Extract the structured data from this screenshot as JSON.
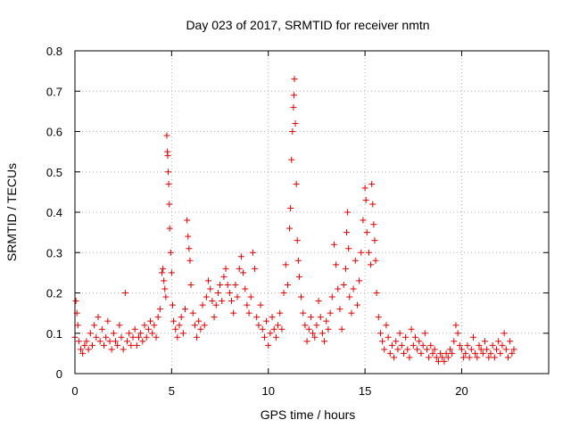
{
  "chart_data": {
    "type": "scatter",
    "title": "Day 023 of 2017, SRMTID for receiver nmtn",
    "xlabel": "GPS time / hours",
    "ylabel": "SRMTID / TECUs",
    "xlim": [
      0,
      24.5
    ],
    "ylim": [
      0,
      0.8
    ],
    "xticks": [
      0,
      5,
      10,
      15,
      20
    ],
    "xtick_labels": [
      "0",
      "5",
      "10",
      "15",
      "20"
    ],
    "yticks": [
      0,
      0.1,
      0.2,
      0.3,
      0.4,
      0.5,
      0.6,
      0.7,
      0.8
    ],
    "ytick_labels": [
      "0",
      "0.1",
      "0.2",
      "0.3",
      "0.4",
      "0.5",
      "0.6",
      "0.7",
      "0.8"
    ],
    "grid": true,
    "marker": "+",
    "color": "#e00000",
    "series": [
      {
        "name": "SRMTID",
        "points": [
          [
            0.0,
            0.09
          ],
          [
            0.05,
            0.18
          ],
          [
            0.1,
            0.15
          ],
          [
            0.15,
            0.12
          ],
          [
            0.2,
            0.08
          ],
          [
            0.3,
            0.06
          ],
          [
            0.4,
            0.05
          ],
          [
            0.5,
            0.07
          ],
          [
            0.6,
            0.08
          ],
          [
            0.7,
            0.06
          ],
          [
            0.8,
            0.1
          ],
          [
            0.9,
            0.07
          ],
          [
            1.0,
            0.12
          ],
          [
            1.1,
            0.09
          ],
          [
            1.2,
            0.14
          ],
          [
            1.3,
            0.08
          ],
          [
            1.4,
            0.11
          ],
          [
            1.5,
            0.07
          ],
          [
            1.6,
            0.09
          ],
          [
            1.7,
            0.13
          ],
          [
            1.8,
            0.08
          ],
          [
            1.9,
            0.06
          ],
          [
            2.0,
            0.1
          ],
          [
            2.1,
            0.08
          ],
          [
            2.2,
            0.07
          ],
          [
            2.3,
            0.12
          ],
          [
            2.4,
            0.09
          ],
          [
            2.5,
            0.06
          ],
          [
            2.6,
            0.2
          ],
          [
            2.7,
            0.08
          ],
          [
            2.8,
            0.1
          ],
          [
            2.9,
            0.07
          ],
          [
            3.0,
            0.09
          ],
          [
            3.1,
            0.11
          ],
          [
            3.2,
            0.07
          ],
          [
            3.3,
            0.09
          ],
          [
            3.4,
            0.1
          ],
          [
            3.5,
            0.08
          ],
          [
            3.6,
            0.12
          ],
          [
            3.7,
            0.09
          ],
          [
            3.8,
            0.11
          ],
          [
            3.9,
            0.13
          ],
          [
            4.0,
            0.1
          ],
          [
            4.1,
            0.12
          ],
          [
            4.2,
            0.09
          ],
          [
            4.3,
            0.14
          ],
          [
            4.4,
            0.16
          ],
          [
            4.5,
            0.25
          ],
          [
            4.55,
            0.26
          ],
          [
            4.6,
            0.23
          ],
          [
            4.65,
            0.21
          ],
          [
            4.7,
            0.19
          ],
          [
            4.75,
            0.59
          ],
          [
            4.78,
            0.55
          ],
          [
            4.8,
            0.54
          ],
          [
            4.82,
            0.5
          ],
          [
            4.85,
            0.47
          ],
          [
            4.88,
            0.42
          ],
          [
            4.9,
            0.36
          ],
          [
            4.95,
            0.3
          ],
          [
            5.0,
            0.25
          ],
          [
            5.05,
            0.17
          ],
          [
            5.1,
            0.13
          ],
          [
            5.2,
            0.11
          ],
          [
            5.3,
            0.09
          ],
          [
            5.4,
            0.12
          ],
          [
            5.5,
            0.14
          ],
          [
            5.6,
            0.1
          ],
          [
            5.7,
            0.16
          ],
          [
            5.8,
            0.38
          ],
          [
            5.85,
            0.34
          ],
          [
            5.9,
            0.31
          ],
          [
            5.95,
            0.28
          ],
          [
            6.0,
            0.22
          ],
          [
            6.1,
            0.15
          ],
          [
            6.2,
            0.12
          ],
          [
            6.3,
            0.09
          ],
          [
            6.4,
            0.13
          ],
          [
            6.5,
            0.11
          ],
          [
            6.6,
            0.17
          ],
          [
            6.7,
            0.12
          ],
          [
            6.8,
            0.19
          ],
          [
            6.9,
            0.23
          ],
          [
            7.0,
            0.21
          ],
          [
            7.1,
            0.18
          ],
          [
            7.2,
            0.14
          ],
          [
            7.3,
            0.17
          ],
          [
            7.4,
            0.2
          ],
          [
            7.5,
            0.22
          ],
          [
            7.6,
            0.18
          ],
          [
            7.7,
            0.24
          ],
          [
            7.8,
            0.26
          ],
          [
            7.9,
            0.22
          ],
          [
            8.0,
            0.2
          ],
          [
            8.1,
            0.18
          ],
          [
            8.2,
            0.15
          ],
          [
            8.3,
            0.22
          ],
          [
            8.4,
            0.19
          ],
          [
            8.5,
            0.26
          ],
          [
            8.6,
            0.29
          ],
          [
            8.7,
            0.25
          ],
          [
            8.8,
            0.21
          ],
          [
            8.9,
            0.17
          ],
          [
            9.0,
            0.15
          ],
          [
            9.1,
            0.19
          ],
          [
            9.2,
            0.3
          ],
          [
            9.3,
            0.26
          ],
          [
            9.4,
            0.14
          ],
          [
            9.5,
            0.12
          ],
          [
            9.6,
            0.17
          ],
          [
            9.7,
            0.11
          ],
          [
            9.8,
            0.09
          ],
          [
            9.9,
            0.13
          ],
          [
            10.0,
            0.07
          ],
          [
            10.1,
            0.1
          ],
          [
            10.2,
            0.14
          ],
          [
            10.3,
            0.11
          ],
          [
            10.4,
            0.09
          ],
          [
            10.5,
            0.12
          ],
          [
            10.6,
            0.15
          ],
          [
            10.7,
            0.11
          ],
          [
            10.8,
            0.2
          ],
          [
            10.9,
            0.27
          ],
          [
            11.0,
            0.22
          ],
          [
            11.1,
            0.36
          ],
          [
            11.15,
            0.41
          ],
          [
            11.2,
            0.53
          ],
          [
            11.25,
            0.6
          ],
          [
            11.3,
            0.66
          ],
          [
            11.33,
            0.69
          ],
          [
            11.35,
            0.73
          ],
          [
            11.4,
            0.62
          ],
          [
            11.45,
            0.47
          ],
          [
            11.5,
            0.33
          ],
          [
            11.55,
            0.28
          ],
          [
            11.6,
            0.24
          ],
          [
            11.7,
            0.19
          ],
          [
            11.8,
            0.15
          ],
          [
            11.9,
            0.12
          ],
          [
            12.0,
            0.08
          ],
          [
            12.1,
            0.11
          ],
          [
            12.2,
            0.14
          ],
          [
            12.3,
            0.1
          ],
          [
            12.4,
            0.09
          ],
          [
            12.5,
            0.12
          ],
          [
            12.6,
            0.18
          ],
          [
            12.7,
            0.14
          ],
          [
            12.8,
            0.1
          ],
          [
            12.9,
            0.08
          ],
          [
            13.0,
            0.13
          ],
          [
            13.1,
            0.11
          ],
          [
            13.2,
            0.15
          ],
          [
            13.3,
            0.19
          ],
          [
            13.4,
            0.32
          ],
          [
            13.5,
            0.27
          ],
          [
            13.6,
            0.21
          ],
          [
            13.7,
            0.16
          ],
          [
            13.8,
            0.11
          ],
          [
            13.9,
            0.22
          ],
          [
            14.0,
            0.26
          ],
          [
            14.05,
            0.35
          ],
          [
            14.1,
            0.4
          ],
          [
            14.15,
            0.31
          ],
          [
            14.2,
            0.19
          ],
          [
            14.3,
            0.15
          ],
          [
            14.4,
            0.21
          ],
          [
            14.5,
            0.28
          ],
          [
            14.6,
            0.17
          ],
          [
            14.7,
            0.23
          ],
          [
            14.8,
            0.3
          ],
          [
            14.9,
            0.38
          ],
          [
            15.0,
            0.46
          ],
          [
            15.05,
            0.43
          ],
          [
            15.1,
            0.35
          ],
          [
            15.2,
            0.3
          ],
          [
            15.3,
            0.27
          ],
          [
            15.35,
            0.47
          ],
          [
            15.4,
            0.42
          ],
          [
            15.45,
            0.37
          ],
          [
            15.5,
            0.33
          ],
          [
            15.55,
            0.28
          ],
          [
            15.6,
            0.2
          ],
          [
            15.7,
            0.14
          ],
          [
            15.8,
            0.1
          ],
          [
            15.9,
            0.08
          ],
          [
            16.0,
            0.06
          ],
          [
            16.1,
            0.12
          ],
          [
            16.2,
            0.09
          ],
          [
            16.3,
            0.05
          ],
          [
            16.4,
            0.07
          ],
          [
            16.5,
            0.04
          ],
          [
            16.6,
            0.08
          ],
          [
            16.7,
            0.06
          ],
          [
            16.8,
            0.1
          ],
          [
            16.9,
            0.07
          ],
          [
            17.0,
            0.05
          ],
          [
            17.1,
            0.09
          ],
          [
            17.2,
            0.06
          ],
          [
            17.3,
            0.04
          ],
          [
            17.4,
            0.11
          ],
          [
            17.5,
            0.07
          ],
          [
            17.6,
            0.09
          ],
          [
            17.7,
            0.06
          ],
          [
            17.8,
            0.08
          ],
          [
            17.9,
            0.05
          ],
          [
            18.0,
            0.07
          ],
          [
            18.1,
            0.1
          ],
          [
            18.2,
            0.06
          ],
          [
            18.3,
            0.04
          ],
          [
            18.4,
            0.07
          ],
          [
            18.5,
            0.05
          ],
          [
            18.6,
            0.06
          ],
          [
            18.7,
            0.04
          ],
          [
            18.8,
            0.03
          ],
          [
            18.9,
            0.05
          ],
          [
            19.0,
            0.04
          ],
          [
            19.1,
            0.03
          ],
          [
            19.2,
            0.05
          ],
          [
            19.3,
            0.04
          ],
          [
            19.4,
            0.06
          ],
          [
            19.5,
            0.05
          ],
          [
            19.6,
            0.08
          ],
          [
            19.7,
            0.12
          ],
          [
            19.8,
            0.1
          ],
          [
            19.9,
            0.07
          ],
          [
            20.0,
            0.06
          ],
          [
            20.1,
            0.04
          ],
          [
            20.2,
            0.05
          ],
          [
            20.3,
            0.07
          ],
          [
            20.4,
            0.04
          ],
          [
            20.5,
            0.06
          ],
          [
            20.6,
            0.09
          ],
          [
            20.7,
            0.05
          ],
          [
            20.8,
            0.04
          ],
          [
            20.9,
            0.07
          ],
          [
            21.0,
            0.06
          ],
          [
            21.1,
            0.05
          ],
          [
            21.2,
            0.08
          ],
          [
            21.3,
            0.06
          ],
          [
            21.4,
            0.04
          ],
          [
            21.5,
            0.05
          ],
          [
            21.6,
            0.07
          ],
          [
            21.7,
            0.04
          ],
          [
            21.8,
            0.06
          ],
          [
            21.9,
            0.08
          ],
          [
            22.0,
            0.05
          ],
          [
            22.1,
            0.07
          ],
          [
            22.2,
            0.1
          ],
          [
            22.3,
            0.06
          ],
          [
            22.4,
            0.04
          ],
          [
            22.5,
            0.08
          ],
          [
            22.6,
            0.05
          ],
          [
            22.7,
            0.06
          ]
        ]
      }
    ]
  }
}
